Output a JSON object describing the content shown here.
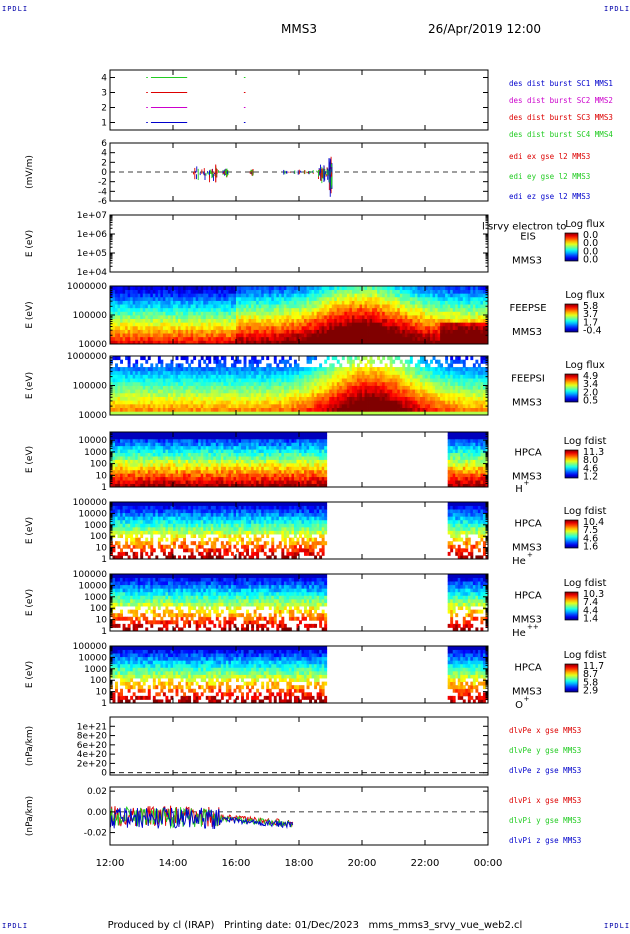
{
  "corner_label": "IPDLI",
  "header": {
    "spacecraft": "MMS3",
    "datetime": "26/Apr/2019 12:00"
  },
  "footer": {
    "text": "Produced by cl (IRAP)   Printing date: 01/Dec/2023   mms_mms3_srvy_vue_web2.cl"
  },
  "colors": {
    "red": "#dd0000",
    "green": "#22cc22",
    "magenta": "#cc00cc",
    "blue": "#0000cc"
  },
  "chart_data": {
    "type": "multi-panel time series",
    "time_axis": {
      "start": "12:00",
      "end": "00:00",
      "ticks": [
        "12:00",
        "14:00",
        "16:00",
        "18:00",
        "20:00",
        "22:00",
        "00:00"
      ]
    },
    "panels": [
      {
        "id": "burst",
        "type": "timeline",
        "ylabel": "",
        "ylim": [
          0.5,
          4.5
        ],
        "yticks": [
          {
            "v": 1,
            "l": "1"
          },
          {
            "v": 2,
            "l": "2"
          },
          {
            "v": 3,
            "l": "3"
          },
          {
            "v": 4,
            "l": "4"
          }
        ],
        "legend": [
          {
            "text": "des dist burst SC1 MMS1",
            "color": "#0000cc"
          },
          {
            "text": "des dist burst SC2 MMS2",
            "color": "#cc00cc"
          },
          {
            "text": "des dist burst SC3 MMS3",
            "color": "#dd0000"
          },
          {
            "text": "des dist burst SC4 MMS4",
            "color": "#22cc22"
          }
        ],
        "series": [
          {
            "y": 4,
            "color": "#22cc22",
            "intervals": [
              [
                13.15,
                13.2
              ],
              [
                13.3,
                14.45
              ],
              [
                16.25,
                16.3
              ]
            ]
          },
          {
            "y": 3,
            "color": "#dd0000",
            "intervals": [
              [
                13.15,
                13.2
              ],
              [
                13.3,
                14.45
              ],
              [
                16.25,
                16.3
              ]
            ]
          },
          {
            "y": 2,
            "color": "#cc00cc",
            "intervals": [
              [
                13.15,
                13.2
              ],
              [
                13.3,
                14.45
              ],
              [
                16.25,
                16.3
              ]
            ]
          },
          {
            "y": 1,
            "color": "#0000cc",
            "intervals": [
              [
                13.15,
                13.2
              ],
              [
                13.3,
                14.45
              ],
              [
                16.25,
                16.3
              ]
            ]
          }
        ]
      },
      {
        "id": "efield",
        "type": "line",
        "ylabel": "(mV/m)",
        "ylim": [
          -6,
          6
        ],
        "yticks": [
          {
            "v": -6,
            "l": "-6"
          },
          {
            "v": -4,
            "l": "-4"
          },
          {
            "v": -2,
            "l": "-2"
          },
          {
            "v": 0,
            "l": "0"
          },
          {
            "v": 2,
            "l": "2"
          },
          {
            "v": 4,
            "l": "4"
          },
          {
            "v": 6,
            "l": "6"
          }
        ],
        "zero_line": true,
        "legend": [
          {
            "text": "edi ex gse l2 MMS3",
            "color": "#dd0000"
          },
          {
            "text": "edi ey gse l2 MMS3",
            "color": "#22cc22"
          },
          {
            "text": "edi ez gse l2 MMS3",
            "color": "#0000cc"
          }
        ],
        "bursts": [
          {
            "t0": 14.65,
            "t1": 15.45,
            "amp": 2.5
          },
          {
            "t0": 15.55,
            "t1": 15.75,
            "amp": 1.2
          },
          {
            "t0": 16.45,
            "t1": 16.55,
            "amp": 1.0
          },
          {
            "t0": 17.5,
            "t1": 18.6,
            "amp": 0.8
          },
          {
            "t0": 18.6,
            "t1": 18.95,
            "amp": 2.5
          },
          {
            "t0": 18.95,
            "t1": 19.05,
            "amp": 5.5
          }
        ]
      },
      {
        "id": "eis",
        "type": "spectrogram",
        "ylabel": "E (eV)",
        "yscale": "log",
        "ylim": [
          10000,
          10000000
        ],
        "yticks": [
          {
            "v": 10000,
            "l": "1e+04"
          },
          {
            "v": 100000,
            "l": "1e+05"
          },
          {
            "v": 1000000,
            "l": "1e+06"
          },
          {
            "v": 10000000,
            "l": "1e+07"
          }
        ],
        "instrument": [
          "EIS",
          "MMS3"
        ],
        "note": "l srvy electron to",
        "colorbar": {
          "title": "Log flux",
          "labels": [
            "0.0",
            "0.0",
            "0.0",
            "0.0"
          ]
        },
        "empty": true
      },
      {
        "id": "feepse",
        "type": "spectrogram",
        "ylabel": "E (eV)",
        "yscale": "log",
        "ylim": [
          10000,
          1000000
        ],
        "yticks": [
          {
            "v": 10000,
            "l": "10000"
          },
          {
            "v": 100000,
            "l": "100000"
          },
          {
            "v": 1000000,
            "l": "1000000"
          }
        ],
        "instrument": [
          "FEEPSE",
          "MMS3"
        ],
        "colorbar": {
          "title": "Log flux",
          "labels": [
            "5.8",
            "3.7",
            "1.7",
            "-0.4"
          ]
        }
      },
      {
        "id": "feepsi",
        "type": "spectrogram",
        "ylabel": "E (eV)",
        "yscale": "log",
        "ylim": [
          10000,
          1000000
        ],
        "yticks": [
          {
            "v": 10000,
            "l": "10000"
          },
          {
            "v": 100000,
            "l": "100000"
          },
          {
            "v": 1000000,
            "l": "1000000"
          }
        ],
        "instrument": [
          "FEEPSI",
          "MMS3"
        ],
        "colorbar": {
          "title": "Log flux",
          "labels": [
            "4.9",
            "3.4",
            "2.0",
            "0.5"
          ]
        }
      },
      {
        "id": "hpca_h",
        "type": "spectrogram",
        "ylabel": "E (eV)",
        "yscale": "log",
        "ylim": [
          1,
          50000
        ],
        "yticks": [
          {
            "v": 1,
            "l": "1"
          },
          {
            "v": 10,
            "l": "10"
          },
          {
            "v": 100,
            "l": "100"
          },
          {
            "v": 1000,
            "l": "1000"
          },
          {
            "v": 10000,
            "l": "10000"
          }
        ],
        "instrument": [
          "HPCA",
          "MMS3"
        ],
        "species": "H",
        "charge": "+",
        "colorbar": {
          "title": "Log fdist",
          "labels": [
            "11.3",
            "8.0",
            "4.6",
            "1.2"
          ]
        },
        "gaps": [
          [
            18.85,
            22.75
          ]
        ]
      },
      {
        "id": "hpca_he",
        "type": "spectrogram",
        "ylabel": "E (eV)",
        "yscale": "log",
        "ylim": [
          1,
          100000
        ],
        "yticks": [
          {
            "v": 1,
            "l": "1"
          },
          {
            "v": 10,
            "l": "10"
          },
          {
            "v": 100,
            "l": "100"
          },
          {
            "v": 1000,
            "l": "1000"
          },
          {
            "v": 10000,
            "l": "10000"
          },
          {
            "v": 100000,
            "l": "100000"
          }
        ],
        "instrument": [
          "HPCA",
          "MMS3"
        ],
        "species": "He",
        "charge": "+",
        "colorbar": {
          "title": "Log fdist",
          "labels": [
            "10.4",
            "7.5",
            "4.6",
            "1.6"
          ]
        },
        "gaps": [
          [
            18.85,
            22.75
          ]
        ]
      },
      {
        "id": "hpca_he2",
        "type": "spectrogram",
        "ylabel": "E (eV)",
        "yscale": "log",
        "ylim": [
          1,
          100000
        ],
        "yticks": [
          {
            "v": 1,
            "l": "1"
          },
          {
            "v": 10,
            "l": "10"
          },
          {
            "v": 100,
            "l": "100"
          },
          {
            "v": 1000,
            "l": "1000"
          },
          {
            "v": 10000,
            "l": "10000"
          },
          {
            "v": 100000,
            "l": "100000"
          }
        ],
        "instrument": [
          "HPCA",
          "MMS3"
        ],
        "species": "He",
        "charge": "++",
        "colorbar": {
          "title": "Log fdist",
          "labels": [
            "10.3",
            "7.4",
            "4.4",
            "1.4"
          ]
        },
        "gaps": [
          [
            18.85,
            22.75
          ]
        ]
      },
      {
        "id": "hpca_o",
        "type": "spectrogram",
        "ylabel": "E (eV)",
        "yscale": "log",
        "ylim": [
          1,
          100000
        ],
        "yticks": [
          {
            "v": 1,
            "l": "1"
          },
          {
            "v": 10,
            "l": "10"
          },
          {
            "v": 100,
            "l": "100"
          },
          {
            "v": 1000,
            "l": "1000"
          },
          {
            "v": 10000,
            "l": "10000"
          },
          {
            "v": 100000,
            "l": "100000"
          }
        ],
        "instrument": [
          "HPCA",
          "MMS3"
        ],
        "species": "O",
        "charge": "+",
        "colorbar": {
          "title": "Log fdist",
          "labels": [
            "11.7",
            "8.7",
            "5.8",
            "2.9"
          ]
        },
        "gaps": [
          [
            18.85,
            22.75
          ]
        ]
      },
      {
        "id": "divpe",
        "type": "line",
        "ylabel": "(nPa/km)",
        "ylim": [
          -5e+19,
          1.2e+21
        ],
        "yticks": [
          {
            "v": 0,
            "l": "0"
          },
          {
            "v": 2e+20,
            "l": "2e+20"
          },
          {
            "v": 4e+20,
            "l": "4e+20"
          },
          {
            "v": 6e+20,
            "l": "6e+20"
          },
          {
            "v": 8e+20,
            "l": "8e+20"
          },
          {
            "v": 1e+21,
            "l": "1e+21"
          }
        ],
        "zero_line": true,
        "legend": [
          {
            "text": "dlvPe x gse MMS3",
            "color": "#dd0000"
          },
          {
            "text": "dlvPe y gse MMS3",
            "color": "#22cc22"
          },
          {
            "text": "dlvPe z gse MMS3",
            "color": "#0000cc"
          }
        ]
      },
      {
        "id": "divpi",
        "type": "line",
        "ylabel": "(nPa/km)",
        "ylim": [
          -0.032,
          0.024
        ],
        "yticks": [
          {
            "v": -0.02,
            "l": "-0.02"
          },
          {
            "v": 0,
            "l": "0.00"
          },
          {
            "v": 0.02,
            "l": "0.02"
          }
        ],
        "zero_line": true,
        "legend": [
          {
            "text": "dlvPi x gse MMS3",
            "color": "#dd0000"
          },
          {
            "text": "dlvPi y gse MMS3",
            "color": "#22cc22"
          },
          {
            "text": "dlvPi z gse MMS3",
            "color": "#0000cc"
          }
        ],
        "data_end": 17.8
      }
    ]
  }
}
